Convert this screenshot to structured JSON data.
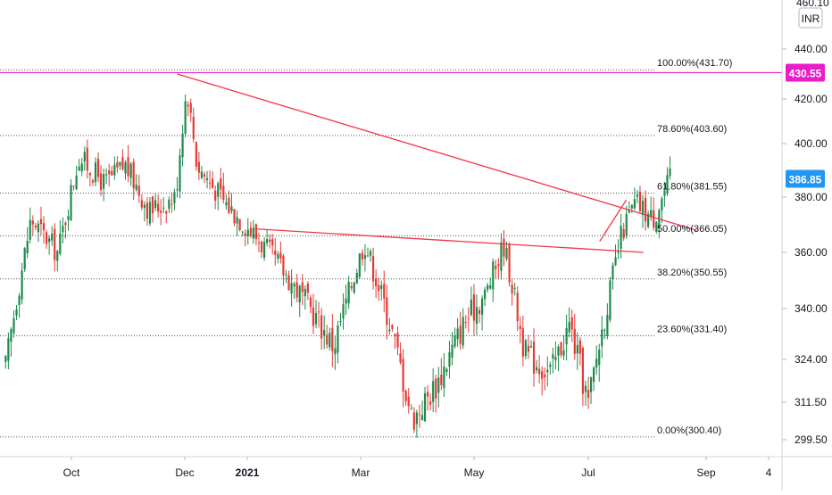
{
  "chart_data": {
    "type": "candlestick",
    "currency": "INR",
    "y_axis_ticks": [
      460.1,
      440.0,
      420.0,
      400.0,
      380.0,
      360.0,
      340.0,
      324.0,
      311.5,
      299.5
    ],
    "y_axis_top_label": "460.10",
    "y_axis_labels": [
      "440.00",
      "420.00",
      "400.00",
      "380.00",
      "360.00",
      "340.00",
      "324.00",
      "311.50",
      "299.50"
    ],
    "x_axis_labels": [
      "Oct",
      "Dec",
      "2021",
      "Mar",
      "May",
      "Jul",
      "Sep",
      "4"
    ],
    "price_tags": [
      {
        "label": "430.55",
        "value": 430.55,
        "color": "#e91ec9"
      },
      {
        "label": "386.85",
        "value": 386.85,
        "color": "#2196f3"
      }
    ],
    "fibonacci_levels": [
      {
        "label": "100.00%(431.70)",
        "value": 431.7
      },
      {
        "label": "78.60%(403.60)",
        "value": 403.6
      },
      {
        "label": "61.80%(381.55)",
        "value": 381.55
      },
      {
        "label": "50.00%(366.05)",
        "value": 366.05
      },
      {
        "label": "38.20%(350.55)",
        "value": 350.55
      },
      {
        "label": "23.60%(331.40)",
        "value": 331.4
      },
      {
        "label": "0.00%(300.40)",
        "value": 300.4
      }
    ],
    "horizontal_line": {
      "value": 430.55,
      "color": "#e91ec9"
    },
    "trendlines": [
      {
        "from": {
          "date": "2020-11-27",
          "price": 430.0
        },
        "to": {
          "date": "2021-08-27",
          "price": 368.0
        },
        "color": "#f23645"
      },
      {
        "from": {
          "date": "2021-01-05",
          "price": 368.5
        },
        "to": {
          "date": "2021-07-30",
          "price": 360.0
        },
        "color": "#f23645"
      },
      {
        "from": {
          "date": "2021-07-07",
          "price": 364.0
        },
        "to": {
          "date": "2021-07-21",
          "price": 379.0
        },
        "color": "#f23645"
      }
    ],
    "candles_trend": [
      {
        "date": "2020-08-27",
        "close": 318
      },
      {
        "date": "2020-09-10",
        "close": 372
      },
      {
        "date": "2020-09-24",
        "close": 360
      },
      {
        "date": "2020-10-05",
        "close": 395
      },
      {
        "date": "2020-10-19",
        "close": 385
      },
      {
        "date": "2020-10-30",
        "close": 392
      },
      {
        "date": "2020-11-12",
        "close": 375
      },
      {
        "date": "2020-11-26",
        "close": 380
      },
      {
        "date": "2020-12-02",
        "close": 425
      },
      {
        "date": "2020-12-07",
        "close": 392
      },
      {
        "date": "2020-12-21",
        "close": 378
      },
      {
        "date": "2021-01-04",
        "close": 367
      },
      {
        "date": "2021-01-18",
        "close": 355
      },
      {
        "date": "2021-02-01",
        "close": 342
      },
      {
        "date": "2021-02-15",
        "close": 328
      },
      {
        "date": "2021-03-03",
        "close": 364
      },
      {
        "date": "2021-03-17",
        "close": 335
      },
      {
        "date": "2021-03-29",
        "close": 306
      },
      {
        "date": "2021-04-12",
        "close": 318
      },
      {
        "date": "2021-04-26",
        "close": 336
      },
      {
        "date": "2021-05-07",
        "close": 345
      },
      {
        "date": "2021-05-17",
        "close": 363
      },
      {
        "date": "2021-05-28",
        "close": 326
      },
      {
        "date": "2021-06-11",
        "close": 320
      },
      {
        "date": "2021-06-21",
        "close": 335
      },
      {
        "date": "2021-07-01",
        "close": 311
      },
      {
        "date": "2021-07-12",
        "close": 345
      },
      {
        "date": "2021-07-19",
        "close": 368
      },
      {
        "date": "2021-07-26",
        "close": 378
      },
      {
        "date": "2021-08-04",
        "close": 372
      },
      {
        "date": "2021-08-13",
        "close": 386.85
      }
    ],
    "xlim": [
      "2020-08-25",
      "2021-10-06"
    ],
    "ylim": [
      295.5,
      462.0
    ],
    "grid": "horizontal-dotted"
  }
}
